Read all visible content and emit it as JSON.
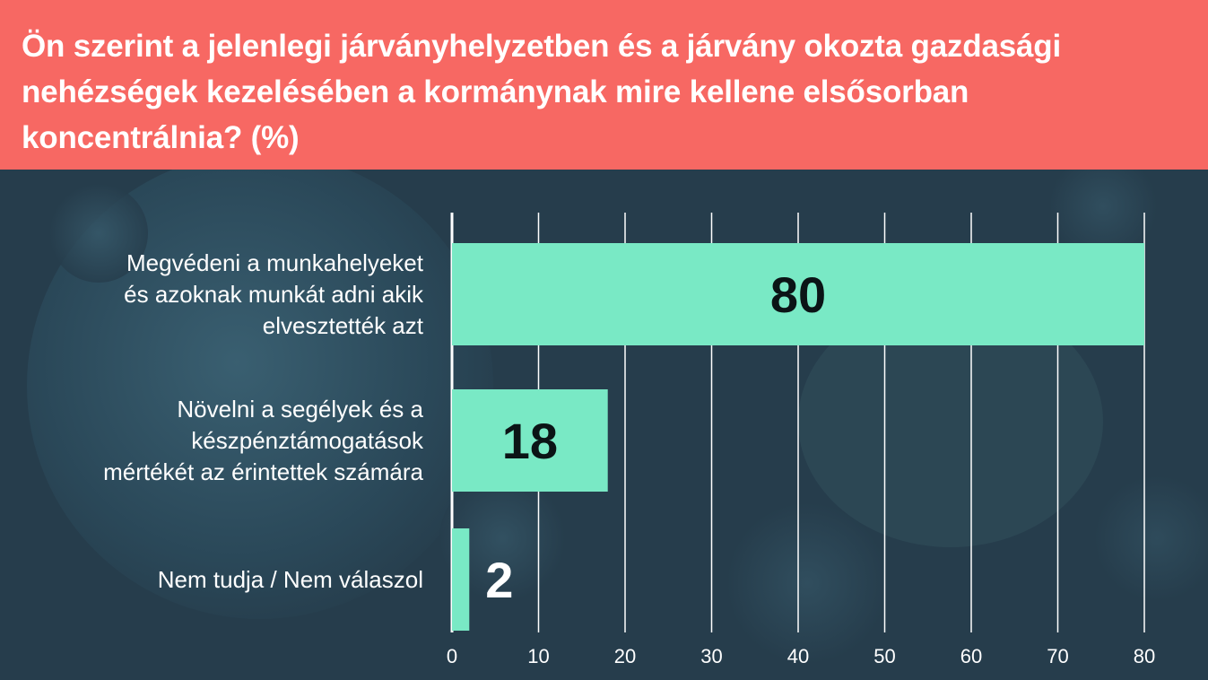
{
  "header": {
    "title": "Ön szerint a jelenlegi járványhelyzetben és a járvány okozta gazdasági nehézségek kezelésében a kormánynak mire kellene elsősorban koncentrálnia? (%)"
  },
  "colors": {
    "header_bg": "#f76863",
    "background": "#263d4c",
    "bar": "#79e9c5",
    "grid": "#ffffff",
    "text": "#ffffff",
    "data_label_inside": "#0b1416",
    "data_label_outside": "#ffffff"
  },
  "chart_data": {
    "type": "bar",
    "orientation": "horizontal",
    "title": "Ön szerint a jelenlegi járványhelyzetben és a járvány okozta gazdasági nehézségek kezelésében a kormánynak mire kellene elsősorban koncentrálnia? (%)",
    "categories": [
      [
        "Megvédeni a munkahelyeket",
        "és azoknak munkát adni akik",
        "elvesztették azt"
      ],
      [
        "Növelni a segélyek és a",
        "készpénztámogatások",
        "mértékét az érintettek számára"
      ],
      [
        "Nem tudja / Nem válaszol"
      ]
    ],
    "values": [
      80,
      18,
      2
    ],
    "xlim": [
      0,
      80
    ],
    "ticks": [
      0,
      10,
      20,
      30,
      40,
      50,
      60,
      70,
      80
    ],
    "grid": true,
    "xlabel": "",
    "ylabel": ""
  }
}
